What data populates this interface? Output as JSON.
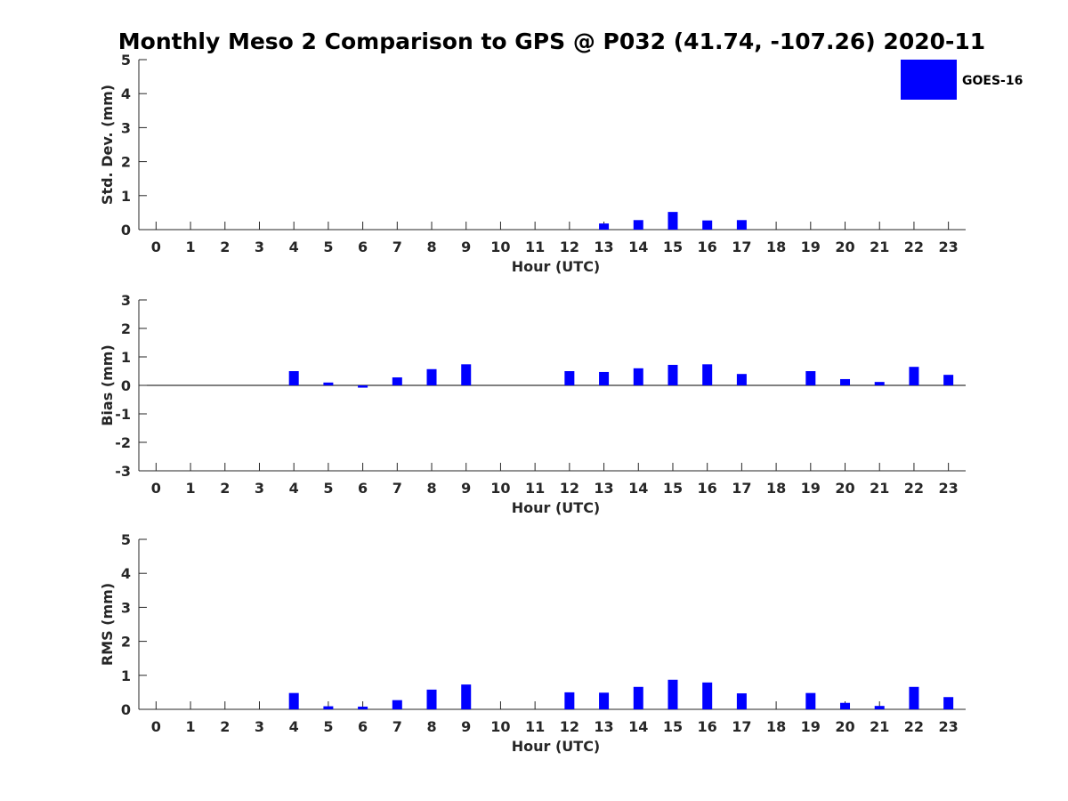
{
  "chart_data": {
    "title": "Monthly Meso 2 Comparison to GPS @ P032 (41.74, -107.26) 2020-11",
    "colors": {
      "bar": "#0000ff",
      "axis": "#262626",
      "text": "#262626"
    },
    "legend": {
      "label": "GOES-16",
      "placement": "top-right"
    },
    "panels": [
      {
        "type": "bar",
        "ylabel": "Std. Dev. (mm)",
        "xlabel": "Hour (UTC)",
        "ylim": [
          0,
          5
        ],
        "yticks": [
          "0",
          "1",
          "2",
          "3",
          "4",
          "5"
        ],
        "categories": [
          "0",
          "1",
          "2",
          "3",
          "4",
          "5",
          "6",
          "7",
          "8",
          "9",
          "10",
          "11",
          "12",
          "13",
          "14",
          "15",
          "16",
          "17",
          "18",
          "19",
          "20",
          "21",
          "22",
          "23"
        ],
        "series": [
          {
            "name": "GOES-16",
            "values": [
              null,
              null,
              null,
              null,
              null,
              null,
              null,
              null,
              null,
              null,
              null,
              null,
              null,
              0.18,
              0.28,
              0.52,
              0.27,
              0.28,
              null,
              null,
              null,
              null,
              null,
              null
            ]
          }
        ]
      },
      {
        "type": "bar",
        "ylabel": "Bias (mm)",
        "xlabel": "Hour (UTC)",
        "ylim": [
          -3,
          3
        ],
        "yticks": [
          "-3",
          "-2",
          "-1",
          "0",
          "1",
          "2",
          "3"
        ],
        "categories": [
          "0",
          "1",
          "2",
          "3",
          "4",
          "5",
          "6",
          "7",
          "8",
          "9",
          "10",
          "11",
          "12",
          "13",
          "14",
          "15",
          "16",
          "17",
          "18",
          "19",
          "20",
          "21",
          "22",
          "23"
        ],
        "series": [
          {
            "name": "GOES-16",
            "values": [
              null,
              null,
              null,
              null,
              0.5,
              0.1,
              -0.08,
              0.28,
              0.57,
              0.74,
              null,
              null,
              0.5,
              0.47,
              0.6,
              0.72,
              0.74,
              0.4,
              null,
              0.5,
              0.22,
              0.12,
              0.65,
              0.37
            ]
          }
        ]
      },
      {
        "type": "bar",
        "ylabel": "RMS (mm)",
        "xlabel": "Hour (UTC)",
        "ylim": [
          0,
          5
        ],
        "yticks": [
          "0",
          "1",
          "2",
          "3",
          "4",
          "5"
        ],
        "categories": [
          "0",
          "1",
          "2",
          "3",
          "4",
          "5",
          "6",
          "7",
          "8",
          "9",
          "10",
          "11",
          "12",
          "13",
          "14",
          "15",
          "16",
          "17",
          "18",
          "19",
          "20",
          "21",
          "22",
          "23"
        ],
        "series": [
          {
            "name": "GOES-16",
            "values": [
              null,
              null,
              null,
              null,
              0.48,
              0.09,
              0.08,
              0.27,
              0.58,
              0.73,
              null,
              null,
              0.5,
              0.49,
              0.66,
              0.87,
              0.79,
              0.47,
              null,
              0.48,
              0.19,
              0.1,
              0.66,
              0.36
            ]
          }
        ]
      }
    ]
  }
}
